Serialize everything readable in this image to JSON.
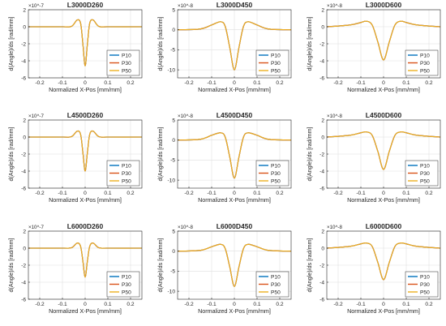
{
  "chart_data": [
    {
      "type": "line",
      "title": "L3000D260",
      "xlabel": "Normalized X-Pos [mm/mm]",
      "ylabel": "d(Angle)/ds [rad/mm]",
      "xlim": [
        -0.25,
        0.25
      ],
      "ylim": [
        -6,
        2
      ],
      "y_exponent": "×10^-7",
      "x_ticks": [
        "-0.2",
        "-0.1",
        "0",
        "0.1",
        "0.2"
      ],
      "y_ticks": [
        "-6",
        "-4",
        "-2",
        "0",
        "2"
      ],
      "legend": "bottom-right",
      "grid": true,
      "series": [
        {
          "name": "P10",
          "color": "#0072BD"
        },
        {
          "name": "P30",
          "color": "#D95319"
        },
        {
          "name": "P50",
          "color": "#EDB120"
        }
      ],
      "curve": {
        "x": [
          -0.25,
          -0.1,
          -0.06,
          -0.035,
          -0.02,
          -0.01,
          0,
          0.01,
          0.02,
          0.035,
          0.06,
          0.1,
          0.25
        ],
        "y": [
          0,
          0,
          0.05,
          0.8,
          0.4,
          -2.0,
          -4.6,
          -2.0,
          0.4,
          0.8,
          0.05,
          0,
          0
        ]
      }
    },
    {
      "type": "line",
      "title": "L3000D450",
      "xlabel": "Normalized X-Pos [mm/mm]",
      "ylabel": "d(Angle)/ds [rad/mm]",
      "xlim": [
        -0.25,
        0.25
      ],
      "ylim": [
        -12,
        5
      ],
      "y_exponent": "×10^-8",
      "x_ticks": [
        "-0.2",
        "-0.1",
        "0",
        "0.1",
        "0.2"
      ],
      "y_ticks": [
        "-10",
        "-5",
        "0",
        "5"
      ],
      "legend": "bottom-right",
      "grid": true,
      "series": [
        {
          "name": "P10",
          "color": "#0072BD"
        },
        {
          "name": "P30",
          "color": "#D95319"
        },
        {
          "name": "P50",
          "color": "#EDB120"
        }
      ],
      "curve": {
        "x": [
          -0.25,
          -0.15,
          -0.1,
          -0.06,
          -0.04,
          -0.02,
          0,
          0.02,
          0.04,
          0.06,
          0.1,
          0.15,
          0.25
        ],
        "y": [
          0,
          0.2,
          1.2,
          2.0,
          0.8,
          -4.5,
          -10,
          -4.5,
          0.8,
          2.0,
          1.2,
          0.2,
          0
        ]
      }
    },
    {
      "type": "line",
      "title": "L3000D600",
      "xlabel": "Normalized X-Pos [mm/mm]",
      "ylabel": "d(Angle)/ds [rad/mm]",
      "xlim": [
        -0.25,
        0.25
      ],
      "ylim": [
        -6,
        2
      ],
      "y_exponent": "×10^-8",
      "x_ticks": [
        "-0.2",
        "-0.1",
        "0",
        "0.1",
        "0.2"
      ],
      "y_ticks": [
        "-6",
        "-4",
        "-2",
        "0",
        "2"
      ],
      "legend": "bottom-right",
      "grid": true,
      "series": [
        {
          "name": "P10",
          "color": "#0072BD"
        },
        {
          "name": "P30",
          "color": "#D95319"
        },
        {
          "name": "P50",
          "color": "#EDB120"
        }
      ],
      "curve": {
        "x": [
          -0.25,
          -0.15,
          -0.1,
          -0.075,
          -0.05,
          -0.025,
          0,
          0.025,
          0.05,
          0.075,
          0.1,
          0.15,
          0.25
        ],
        "y": [
          0,
          0.2,
          0.5,
          0.65,
          0.2,
          -1.8,
          -3.9,
          -1.8,
          0.2,
          0.65,
          0.5,
          0.2,
          0
        ]
      }
    },
    {
      "type": "line",
      "title": "L4500D260",
      "xlabel": "Normalized X-Pos [mm/mm]",
      "ylabel": "d(Angle)/ds [rad/mm]",
      "xlim": [
        -0.25,
        0.25
      ],
      "ylim": [
        -6,
        2
      ],
      "y_exponent": "×10^-7",
      "x_ticks": [
        "-0.2",
        "-0.1",
        "0",
        "0.1",
        "0.2"
      ],
      "y_ticks": [
        "-6",
        "-4",
        "-2",
        "0",
        "2"
      ],
      "legend": "bottom-right",
      "grid": true,
      "series": [
        {
          "name": "P10",
          "color": "#0072BD"
        },
        {
          "name": "P30",
          "color": "#D95319"
        },
        {
          "name": "P50",
          "color": "#EDB120"
        }
      ],
      "curve": {
        "x": [
          -0.25,
          -0.1,
          -0.06,
          -0.035,
          -0.02,
          -0.01,
          0,
          0.01,
          0.02,
          0.035,
          0.06,
          0.1,
          0.25
        ],
        "y": [
          0,
          0,
          0.05,
          0.7,
          0.3,
          -1.8,
          -4.0,
          -1.8,
          0.3,
          0.7,
          0.05,
          0,
          0
        ]
      }
    },
    {
      "type": "line",
      "title": "L4500D450",
      "xlabel": "Normalized X-Pos [mm/mm]",
      "ylabel": "d(Angle)/ds [rad/mm]",
      "xlim": [
        -0.25,
        0.25
      ],
      "ylim": [
        -12,
        5
      ],
      "y_exponent": "×10^-8",
      "x_ticks": [
        "-0.2",
        "-0.1",
        "0",
        "0.1",
        "0.2"
      ],
      "y_ticks": [
        "-10",
        "-5",
        "0",
        "5"
      ],
      "legend": "bottom-right",
      "grid": true,
      "series": [
        {
          "name": "P10",
          "color": "#0072BD"
        },
        {
          "name": "P30",
          "color": "#D95319"
        },
        {
          "name": "P50",
          "color": "#EDB120"
        }
      ],
      "curve": {
        "x": [
          -0.25,
          -0.15,
          -0.1,
          -0.06,
          -0.04,
          -0.02,
          0,
          0.02,
          0.04,
          0.06,
          0.1,
          0.15,
          0.25
        ],
        "y": [
          0,
          0.2,
          1.2,
          1.8,
          0.7,
          -4.3,
          -9.5,
          -4.3,
          0.7,
          1.8,
          1.2,
          0.2,
          0
        ]
      }
    },
    {
      "type": "line",
      "title": "L4500D600",
      "xlabel": "Normalized X-Pos [mm/mm]",
      "ylabel": "d(Angle)/ds [rad/mm]",
      "xlim": [
        -0.25,
        0.25
      ],
      "ylim": [
        -6,
        2
      ],
      "y_exponent": "×10^-8",
      "x_ticks": [
        "-0.2",
        "-0.1",
        "0",
        "0.1",
        "0.2"
      ],
      "y_ticks": [
        "-6",
        "-4",
        "-2",
        "0",
        "2"
      ],
      "legend": "bottom-right",
      "grid": true,
      "series": [
        {
          "name": "P10",
          "color": "#0072BD"
        },
        {
          "name": "P30",
          "color": "#D95319"
        },
        {
          "name": "P50",
          "color": "#EDB120"
        }
      ],
      "curve": {
        "x": [
          -0.25,
          -0.15,
          -0.1,
          -0.075,
          -0.05,
          -0.025,
          0,
          0.025,
          0.05,
          0.075,
          0.1,
          0.15,
          0.25
        ],
        "y": [
          0,
          0.2,
          0.5,
          0.6,
          0.2,
          -1.7,
          -3.8,
          -1.7,
          0.2,
          0.6,
          0.5,
          0.2,
          0
        ]
      }
    },
    {
      "type": "line",
      "title": "L6000D260",
      "xlabel": "Normalized X-Pos [mm/mm]",
      "ylabel": "d(Angle)/ds [rad/mm]",
      "xlim": [
        -0.25,
        0.25
      ],
      "ylim": [
        -6,
        2
      ],
      "y_exponent": "×10^-7",
      "x_ticks": [
        "-0.2",
        "-0.1",
        "0",
        "0.1",
        "0.2"
      ],
      "y_ticks": [
        "-6",
        "-4",
        "-2",
        "0",
        "2"
      ],
      "legend": "bottom-right",
      "grid": true,
      "series": [
        {
          "name": "P10",
          "color": "#0072BD"
        },
        {
          "name": "P30",
          "color": "#D95319"
        },
        {
          "name": "P50",
          "color": "#EDB120"
        }
      ],
      "curve": {
        "x": [
          -0.25,
          -0.1,
          -0.06,
          -0.035,
          -0.02,
          -0.01,
          0,
          0.01,
          0.02,
          0.035,
          0.06,
          0.1,
          0.25
        ],
        "y": [
          0,
          0,
          0.05,
          0.6,
          0.2,
          -1.5,
          -3.4,
          -1.5,
          0.2,
          0.6,
          0.05,
          0,
          0
        ]
      }
    },
    {
      "type": "line",
      "title": "L6000D450",
      "xlabel": "Normalized X-Pos [mm/mm]",
      "ylabel": "d(Angle)/ds [rad/mm]",
      "xlim": [
        -0.25,
        0.25
      ],
      "ylim": [
        -12,
        5
      ],
      "y_exponent": "×10^-8",
      "x_ticks": [
        "-0.2",
        "-0.1",
        "0",
        "0.1",
        "0.2"
      ],
      "y_ticks": [
        "-10",
        "-5",
        "0",
        "5"
      ],
      "legend": "bottom-right",
      "grid": true,
      "series": [
        {
          "name": "P10",
          "color": "#0072BD"
        },
        {
          "name": "P30",
          "color": "#D95319"
        },
        {
          "name": "P50",
          "color": "#EDB120"
        }
      ],
      "curve": {
        "x": [
          -0.25,
          -0.15,
          -0.1,
          -0.06,
          -0.04,
          -0.02,
          0,
          0.02,
          0.04,
          0.06,
          0.1,
          0.15,
          0.25
        ],
        "y": [
          0,
          0.2,
          1.1,
          1.7,
          0.6,
          -4.0,
          -8.8,
          -4.0,
          0.6,
          1.7,
          1.1,
          0.2,
          0
        ]
      }
    },
    {
      "type": "line",
      "title": "L6000D600",
      "xlabel": "Normalized X-Pos [mm/mm]",
      "ylabel": "d(Angle)/ds [rad/mm]",
      "xlim": [
        -0.25,
        0.25
      ],
      "ylim": [
        -6,
        2
      ],
      "y_exponent": "×10^-8",
      "x_ticks": [
        "-0.2",
        "-0.1",
        "0",
        "0.1",
        "0.2"
      ],
      "y_ticks": [
        "-6",
        "-4",
        "-2",
        "0",
        "2"
      ],
      "legend": "bottom-right",
      "grid": true,
      "series": [
        {
          "name": "P10",
          "color": "#0072BD"
        },
        {
          "name": "P30",
          "color": "#D95319"
        },
        {
          "name": "P50",
          "color": "#EDB120"
        }
      ],
      "curve": {
        "x": [
          -0.25,
          -0.15,
          -0.1,
          -0.075,
          -0.05,
          -0.025,
          0,
          0.025,
          0.05,
          0.075,
          0.1,
          0.15,
          0.25
        ],
        "y": [
          0,
          0.2,
          0.5,
          0.6,
          0.2,
          -1.7,
          -3.7,
          -1.7,
          0.2,
          0.6,
          0.5,
          0.2,
          0
        ]
      }
    }
  ]
}
